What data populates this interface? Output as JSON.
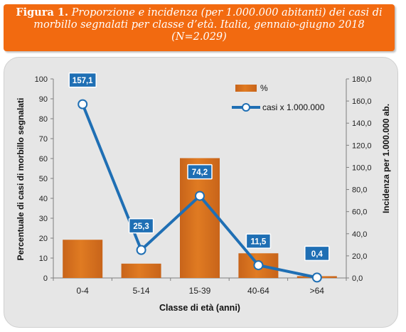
{
  "figure": {
    "label": "Figura 1.",
    "caption": "Proporzione e incidenza (per 1.000.000 abitanti) dei casi di morbillo segnalati per classe d’età. Italia, gennaio-giugno 2018 (N=2.029)"
  },
  "colors": {
    "banner": "#f26a10",
    "bar": "#e07b22",
    "line": "#1f6fb4",
    "label_box": "#1f6fb4",
    "panel": "#e6e6e6"
  },
  "chart_data": {
    "type": "bar",
    "categories": [
      "0-4",
      "5-14",
      "15-39",
      "40-64",
      ">64"
    ],
    "series": [
      {
        "name": "%",
        "type": "bar",
        "axis": "left",
        "values": [
          19.2,
          7.2,
          60.2,
          12.4,
          0.9
        ]
      },
      {
        "name": "casi x 1.000.000",
        "type": "line",
        "axis": "right",
        "values": [
          157.1,
          25.3,
          74.2,
          11.5,
          0.4
        ],
        "labels": [
          "157,1",
          "25,3",
          "74,2",
          "11,5",
          "0,4"
        ]
      }
    ],
    "xlabel": "Classe di età (anni)",
    "ylabel": "Percentuale di casi di morbillo segnalati",
    "y2label": "Incidenza per 1.000.000 ab.",
    "ylim": [
      0,
      100
    ],
    "y2lim": [
      0,
      180
    ],
    "yticks": [
      "0",
      "10",
      "20",
      "30",
      "40",
      "50",
      "60",
      "70",
      "80",
      "90",
      "100"
    ],
    "y2ticks": [
      "0,0",
      "20,0",
      "40,0",
      "60,0",
      "80,0",
      "100,0",
      "120,0",
      "140,0",
      "160,0",
      "180,0"
    ],
    "legend_position": "top-right",
    "grid": false
  }
}
